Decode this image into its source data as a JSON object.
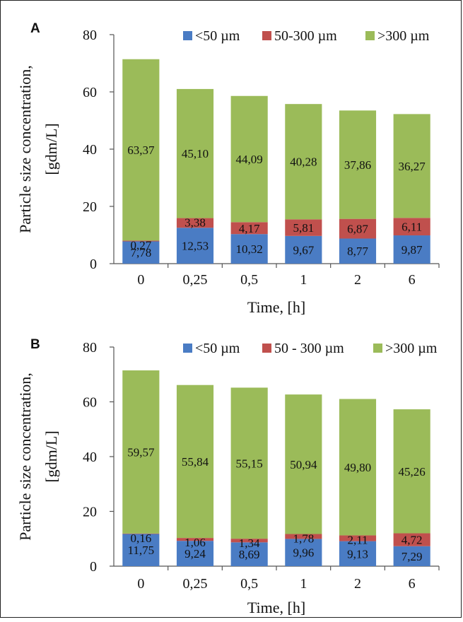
{
  "chart_data": [
    {
      "panel": "A",
      "type": "bar",
      "stacked": true,
      "categories": [
        "0",
        "0,25",
        "0,5",
        "1",
        "2",
        "6"
      ],
      "series": [
        {
          "name": "<50 µm",
          "color": "#4a7cc4",
          "values": [
            7.78,
            12.53,
            10.32,
            9.67,
            8.77,
            9.87
          ],
          "labels": [
            "7,78",
            "12,53",
            "10,32",
            "9,67",
            "8,77",
            "9,87"
          ]
        },
        {
          "name": "50-300 µm",
          "color": "#c0504d",
          "values": [
            0.27,
            3.38,
            4.17,
            5.81,
            6.87,
            6.11
          ],
          "labels": [
            "0,27",
            "3,38",
            "4,17",
            "5,81",
            "6,87",
            "6,11"
          ]
        },
        {
          "name": ">300 µm",
          "color": "#9bbb59",
          "values": [
            63.37,
            45.1,
            44.09,
            40.28,
            37.86,
            36.27
          ],
          "labels": [
            "63,37",
            "45,10",
            "44,09",
            "40,28",
            "37,86",
            "36,27"
          ]
        }
      ],
      "xlabel": "Time, [h]",
      "ylabel": [
        "Particle size concentration,",
        "[gdm/L]"
      ],
      "ylim": [
        0,
        80
      ],
      "yticks": [
        "0",
        "20",
        "40",
        "60",
        "80"
      ],
      "grid": false,
      "legend_position": "top"
    },
    {
      "panel": "B",
      "type": "bar",
      "stacked": true,
      "categories": [
        "0",
        "0,25",
        "0,5",
        "1",
        "2",
        "6"
      ],
      "series": [
        {
          "name": "<50 µm",
          "color": "#4a7cc4",
          "values": [
            11.75,
            9.24,
            8.69,
            9.96,
            9.13,
            7.29
          ],
          "labels": [
            "11,75",
            "9,24",
            "8,69",
            "9,96",
            "9,13",
            "7,29"
          ]
        },
        {
          "name": "50 - 300 µm",
          "color": "#c0504d",
          "values": [
            0.16,
            1.06,
            1.34,
            1.78,
            2.11,
            4.72
          ],
          "labels": [
            "0,16",
            "1,06",
            "1,34",
            "1,78",
            "2,11",
            "4,72"
          ]
        },
        {
          "name": ">300 µm",
          "color": "#9bbb59",
          "values": [
            59.57,
            55.84,
            55.15,
            50.94,
            49.8,
            45.26
          ],
          "labels": [
            "59,57",
            "55,84",
            "55,15",
            "50,94",
            "49,80",
            "45,26"
          ]
        }
      ],
      "xlabel": "Time, [h]",
      "ylabel": [
        "Particle size concentration,",
        "[gdm/L]"
      ],
      "ylim": [
        0,
        80
      ],
      "yticks": [
        "0",
        "20",
        "40",
        "60",
        "80"
      ],
      "grid": false,
      "legend_position": "top"
    }
  ]
}
